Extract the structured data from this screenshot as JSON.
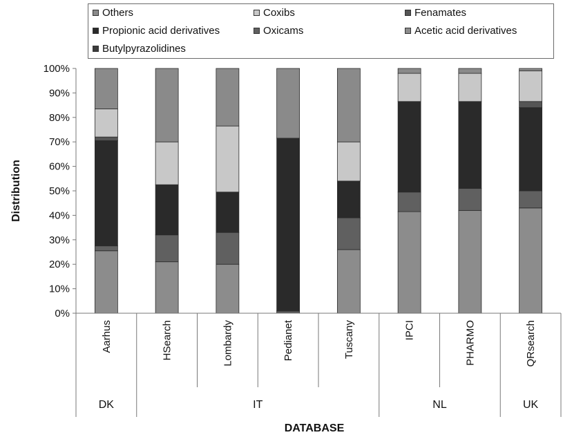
{
  "chart_data": {
    "type": "bar",
    "stacked": true,
    "percent": true,
    "categories": [
      "Aarhus",
      "HSearch",
      "Lombardy",
      "Pedianet",
      "Tuscany",
      "IPCI",
      "PHARMO",
      "QRsearch"
    ],
    "groups": [
      {
        "label": "DK",
        "count": 1
      },
      {
        "label": "IT",
        "count": 4
      },
      {
        "label": "NL",
        "count": 2
      },
      {
        "label": "UK",
        "count": 1
      }
    ],
    "series": [
      {
        "name": "Acetic acid derivatives",
        "color": "#8c8c8c",
        "values": [
          25.5,
          21,
          20,
          0.5,
          26,
          41.5,
          42,
          43
        ]
      },
      {
        "name": "Butylpyrazolidines",
        "color": "#3c3c3c",
        "values": [
          0,
          0,
          0,
          0,
          0,
          0,
          0,
          0
        ]
      },
      {
        "name": "Oxicams",
        "color": "#606060",
        "values": [
          2,
          11,
          13,
          0.5,
          13,
          8,
          9,
          7
        ]
      },
      {
        "name": "Propionic acid derivatives",
        "color": "#2a2a2a",
        "values": [
          43,
          20.5,
          16.5,
          70.5,
          15,
          37,
          35.5,
          34
        ]
      },
      {
        "name": "Fenamates",
        "color": "#555555",
        "values": [
          1.5,
          0,
          0,
          0,
          0,
          0,
          0,
          2.5
        ]
      },
      {
        "name": "Coxibs",
        "color": "#c8c8c8",
        "values": [
          11.5,
          17.5,
          27,
          0,
          16,
          11.5,
          11.5,
          12.5
        ]
      },
      {
        "name": "Others",
        "color": "#8a8a8a",
        "values": [
          16.5,
          30,
          23.5,
          28.5,
          30,
          2,
          2,
          1
        ]
      }
    ],
    "legend_order": [
      "Others",
      "Coxibs",
      "Fenamates",
      "Propionic acid derivatives",
      "Oxicams",
      "Acetic acid derivatives",
      "Butylpyrazolidines"
    ],
    "ylim": [
      0,
      100
    ],
    "yticks": [
      "0%",
      "10%",
      "20%",
      "30%",
      "40%",
      "50%",
      "60%",
      "70%",
      "80%",
      "90%",
      "100%"
    ],
    "xlabel": "DATABASE",
    "ylabel": "Distribution",
    "grid": false,
    "legend_position": "top"
  }
}
